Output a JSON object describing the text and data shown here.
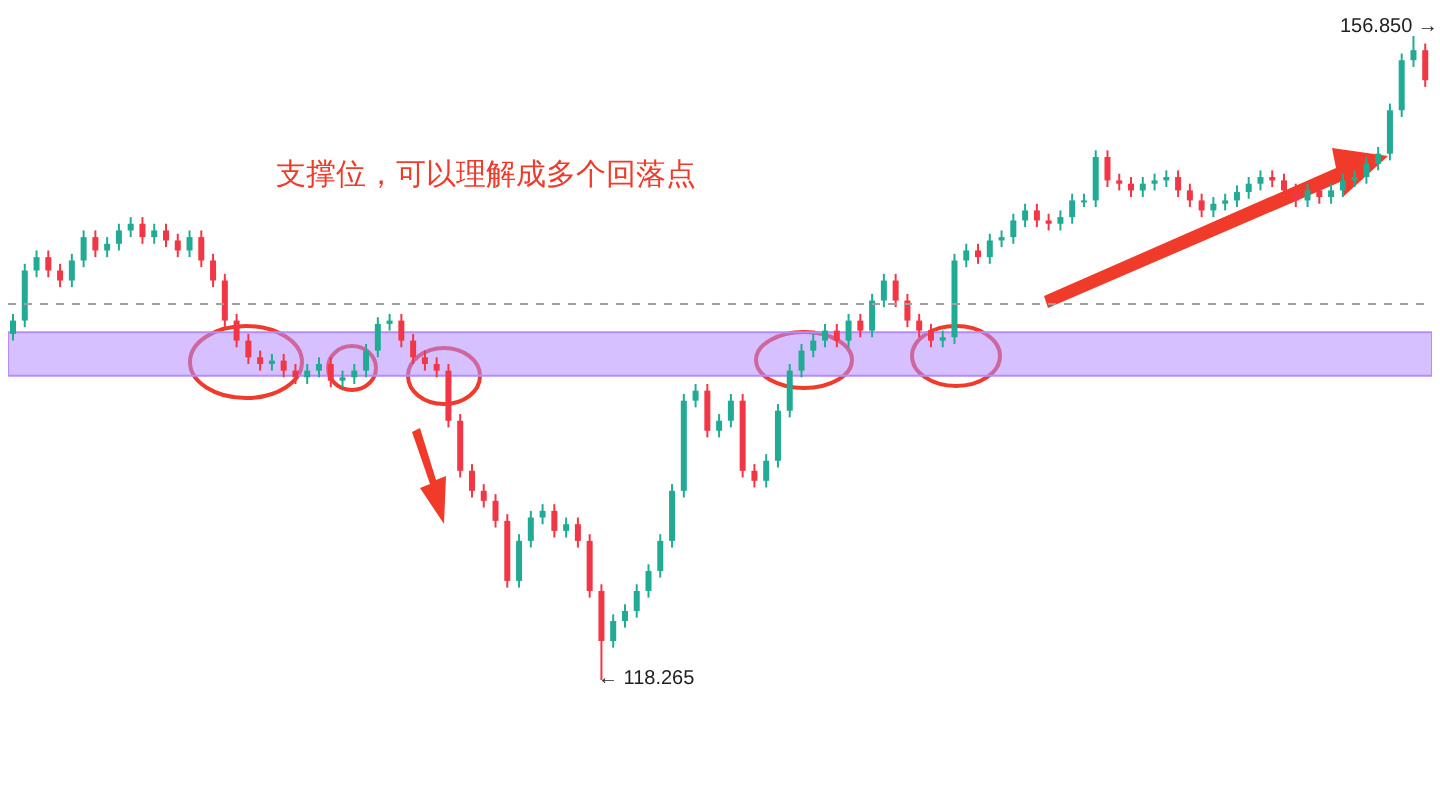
{
  "chart_data": {
    "type": "candlestick",
    "annotations": [
      "支撑位，可以理解成多个回落点",
      "156.850 →",
      "← 118.265"
    ],
    "ref_lines": [
      {
        "axis": "y",
        "value": 140.8,
        "color": "#a0a0a0",
        "line_style": "dashed"
      }
    ],
    "bands": [
      {
        "axis": "y",
        "from": 136.5,
        "to": 139.1,
        "color": "#b48cff"
      }
    ],
    "categories": [
      null,
      null,
      null,
      null,
      null,
      null,
      null,
      null,
      null,
      null,
      null,
      null,
      null,
      null,
      null,
      null,
      null,
      null,
      null,
      null,
      null,
      null,
      null,
      null,
      null,
      null,
      null,
      null,
      null,
      null,
      null,
      null,
      null,
      null,
      null,
      null,
      null,
      null,
      null,
      null,
      null,
      null,
      null,
      null,
      null,
      null,
      null,
      null,
      null,
      null,
      null,
      null,
      null,
      null,
      null,
      null,
      null,
      null,
      null,
      null,
      null,
      null,
      null,
      null,
      null,
      null,
      null,
      null,
      null,
      null,
      null,
      null,
      null,
      null,
      null,
      null,
      null,
      null,
      null,
      null,
      null,
      null,
      null,
      null,
      null,
      null,
      null,
      null,
      null,
      null,
      null,
      null,
      null,
      null,
      null,
      null,
      null,
      null,
      null,
      null,
      null,
      null,
      null,
      null,
      null,
      null,
      null,
      null,
      null,
      null,
      null,
      null,
      null,
      null,
      null,
      null,
      null,
      null,
      null,
      null,
      null
    ],
    "ohlc": [
      [
        139.0,
        140.2,
        138.6,
        139.8
      ],
      [
        139.8,
        143.2,
        139.4,
        142.8
      ],
      [
        142.8,
        144.0,
        142.4,
        143.6
      ],
      [
        143.6,
        144.0,
        142.4,
        142.8
      ],
      [
        142.8,
        143.2,
        141.8,
        142.2
      ],
      [
        142.2,
        143.8,
        141.8,
        143.4
      ],
      [
        143.4,
        145.2,
        143.0,
        144.8
      ],
      [
        144.8,
        145.2,
        143.6,
        144.0
      ],
      [
        144.0,
        144.8,
        143.6,
        144.4
      ],
      [
        144.4,
        145.6,
        144.0,
        145.2
      ],
      [
        145.2,
        146.0,
        144.8,
        145.6
      ],
      [
        145.6,
        146.0,
        144.4,
        144.8
      ],
      [
        144.8,
        145.6,
        144.4,
        145.2
      ],
      [
        145.2,
        145.6,
        144.2,
        144.6
      ],
      [
        144.6,
        145.0,
        143.6,
        144.0
      ],
      [
        144.0,
        145.2,
        143.6,
        144.8
      ],
      [
        144.8,
        145.2,
        143.0,
        143.4
      ],
      [
        143.4,
        143.8,
        141.8,
        142.2
      ],
      [
        142.2,
        142.6,
        139.4,
        139.8
      ],
      [
        139.8,
        140.2,
        138.2,
        138.6
      ],
      [
        138.6,
        139.0,
        137.2,
        137.6
      ],
      [
        137.6,
        138.0,
        136.8,
        137.2
      ],
      [
        137.2,
        137.8,
        136.8,
        137.4
      ],
      [
        137.4,
        137.8,
        136.4,
        136.8
      ],
      [
        136.8,
        137.2,
        136.0,
        136.4
      ],
      [
        136.4,
        137.2,
        136.0,
        136.8
      ],
      [
        136.8,
        137.6,
        136.4,
        137.2
      ],
      [
        137.2,
        137.6,
        135.8,
        136.2
      ],
      [
        136.2,
        136.8,
        135.8,
        136.4
      ],
      [
        136.4,
        137.2,
        136.0,
        136.8
      ],
      [
        136.8,
        138.4,
        136.4,
        138.0
      ],
      [
        138.0,
        140.0,
        137.6,
        139.6
      ],
      [
        139.6,
        140.2,
        139.2,
        139.8
      ],
      [
        139.8,
        140.2,
        138.2,
        138.6
      ],
      [
        138.6,
        139.0,
        137.2,
        137.6
      ],
      [
        137.6,
        138.0,
        136.8,
        137.2
      ],
      [
        137.2,
        137.6,
        136.4,
        136.8
      ],
      [
        136.8,
        137.2,
        133.4,
        133.8
      ],
      [
        133.8,
        134.2,
        130.4,
        130.8
      ],
      [
        130.8,
        131.2,
        129.2,
        129.6
      ],
      [
        129.6,
        130.0,
        128.6,
        129.0
      ],
      [
        129.0,
        129.4,
        127.4,
        127.8
      ],
      [
        127.8,
        128.2,
        123.8,
        124.2
      ],
      [
        124.2,
        127.0,
        123.8,
        126.6
      ],
      [
        126.6,
        128.4,
        126.2,
        128.0
      ],
      [
        128.0,
        128.8,
        127.6,
        128.4
      ],
      [
        128.4,
        128.8,
        126.8,
        127.2
      ],
      [
        127.2,
        128.0,
        126.8,
        127.6
      ],
      [
        127.6,
        128.0,
        126.2,
        126.6
      ],
      [
        126.6,
        127.0,
        123.2,
        123.6
      ],
      [
        123.6,
        124.0,
        118.265,
        120.6
      ],
      [
        120.6,
        122.2,
        120.2,
        121.8
      ],
      [
        121.8,
        122.8,
        121.4,
        122.4
      ],
      [
        122.4,
        124.0,
        122.0,
        123.6
      ],
      [
        123.6,
        125.2,
        123.2,
        124.8
      ],
      [
        124.8,
        127.0,
        124.4,
        126.6
      ],
      [
        126.6,
        130.0,
        126.2,
        129.6
      ],
      [
        129.6,
        135.4,
        129.2,
        135.0
      ],
      [
        135.0,
        136.0,
        134.6,
        135.6
      ],
      [
        135.6,
        136.0,
        132.8,
        133.2
      ],
      [
        133.2,
        134.2,
        132.8,
        133.8
      ],
      [
        133.8,
        135.4,
        133.4,
        135.0
      ],
      [
        135.0,
        135.4,
        130.4,
        130.8
      ],
      [
        130.8,
        131.2,
        129.8,
        130.2
      ],
      [
        130.2,
        131.8,
        129.8,
        131.4
      ],
      [
        131.4,
        134.8,
        131.0,
        134.4
      ],
      [
        134.4,
        137.2,
        134.0,
        136.8
      ],
      [
        136.8,
        138.4,
        136.4,
        138.0
      ],
      [
        138.0,
        139.0,
        137.6,
        138.6
      ],
      [
        138.6,
        139.6,
        138.2,
        139.2
      ],
      [
        139.2,
        139.6,
        138.2,
        138.6
      ],
      [
        138.6,
        140.2,
        138.2,
        139.8
      ],
      [
        139.8,
        140.2,
        138.8,
        139.2
      ],
      [
        139.2,
        141.4,
        138.8,
        141.0
      ],
      [
        141.0,
        142.6,
        140.6,
        142.2
      ],
      [
        142.2,
        142.6,
        140.6,
        141.0
      ],
      [
        141.0,
        141.4,
        139.4,
        139.8
      ],
      [
        139.8,
        140.2,
        138.8,
        139.2
      ],
      [
        139.2,
        139.6,
        138.2,
        138.6
      ],
      [
        138.6,
        139.2,
        138.2,
        138.8
      ],
      [
        138.8,
        143.8,
        138.4,
        143.4
      ],
      [
        143.4,
        144.4,
        143.0,
        144.0
      ],
      [
        144.0,
        144.4,
        143.2,
        143.6
      ],
      [
        143.6,
        145.0,
        143.2,
        144.6
      ],
      [
        144.6,
        145.2,
        144.2,
        144.8
      ],
      [
        144.8,
        146.2,
        144.4,
        145.8
      ],
      [
        145.8,
        146.8,
        145.4,
        146.4
      ],
      [
        146.4,
        146.8,
        145.4,
        145.8
      ],
      [
        145.8,
        146.2,
        145.2,
        145.6
      ],
      [
        145.6,
        146.4,
        145.2,
        146.0
      ],
      [
        146.0,
        147.4,
        145.6,
        147.0
      ],
      [
        147.0,
        147.4,
        146.6,
        147.0
      ],
      [
        147.0,
        150.0,
        146.6,
        149.6
      ],
      [
        149.6,
        150.0,
        147.8,
        148.2
      ],
      [
        148.2,
        148.6,
        147.6,
        148.0
      ],
      [
        148.0,
        148.4,
        147.2,
        147.6
      ],
      [
        147.6,
        148.4,
        147.2,
        148.0
      ],
      [
        148.0,
        148.6,
        147.6,
        148.2
      ],
      [
        148.2,
        148.8,
        147.8,
        148.4
      ],
      [
        148.4,
        148.8,
        147.2,
        147.6
      ],
      [
        147.6,
        148.0,
        146.6,
        147.0
      ],
      [
        147.0,
        147.4,
        146.0,
        146.4
      ],
      [
        146.4,
        147.2,
        146.0,
        146.8
      ],
      [
        146.8,
        147.4,
        146.4,
        147.0
      ],
      [
        147.0,
        147.9,
        146.6,
        147.5
      ],
      [
        147.5,
        148.4,
        147.1,
        148.0
      ],
      [
        148.0,
        148.8,
        147.6,
        148.4
      ],
      [
        148.4,
        148.8,
        147.8,
        148.2
      ],
      [
        148.2,
        148.6,
        147.2,
        147.6
      ],
      [
        147.6,
        148.0,
        146.6,
        147.0
      ],
      [
        147.0,
        148.0,
        146.6,
        147.6
      ],
      [
        147.6,
        148.0,
        146.8,
        147.2
      ],
      [
        147.2,
        148.0,
        146.8,
        147.6
      ],
      [
        147.6,
        148.6,
        147.2,
        148.2
      ],
      [
        148.2,
        148.8,
        147.8,
        148.4
      ],
      [
        148.4,
        149.6,
        148.0,
        149.2
      ],
      [
        149.2,
        150.2,
        148.8,
        149.8
      ],
      [
        149.8,
        152.8,
        149.4,
        152.4
      ],
      [
        152.4,
        155.8,
        152.0,
        155.4
      ],
      [
        155.4,
        156.85,
        155.0,
        156.0
      ],
      [
        156.0,
        156.4,
        153.8,
        154.2
      ]
    ],
    "colors": [
      "#22ab94",
      "#22ab94",
      "#22ab94",
      "#f23645",
      "#f23645",
      "#22ab94",
      "#22ab94",
      "#f23645",
      "#22ab94",
      "#22ab94",
      "#22ab94",
      "#f23645",
      "#22ab94",
      "#f23645",
      "#f23645",
      "#22ab94",
      "#f23645",
      "#f23645",
      "#f23645",
      "#f23645",
      "#f23645",
      "#f23645",
      "#22ab94",
      "#f23645",
      "#f23645",
      "#22ab94",
      "#22ab94",
      "#f23645",
      "#22ab94",
      "#22ab94",
      "#22ab94",
      "#22ab94",
      "#22ab94",
      "#f23645",
      "#f23645",
      "#f23645",
      "#f23645",
      "#f23645",
      "#f23645",
      "#f23645",
      "#f23645",
      "#f23645",
      "#f23645",
      "#22ab94",
      "#22ab94",
      "#22ab94",
      "#f23645",
      "#22ab94",
      "#f23645",
      "#f23645",
      "#f23645",
      "#22ab94",
      "#22ab94",
      "#22ab94",
      "#22ab94",
      "#22ab94",
      "#22ab94",
      "#22ab94",
      "#22ab94",
      "#f23645",
      "#22ab94",
      "#22ab94",
      "#f23645",
      "#f23645",
      "#22ab94",
      "#22ab94",
      "#22ab94",
      "#22ab94",
      "#22ab94",
      "#22ab94",
      "#f23645",
      "#22ab94",
      "#f23645",
      "#22ab94",
      "#22ab94",
      "#f23645",
      "#f23645",
      "#f23645",
      "#f23645",
      "#22ab94",
      "#22ab94",
      "#22ab94",
      "#f23645",
      "#22ab94",
      "#22ab94",
      "#22ab94",
      "#22ab94",
      "#f23645",
      "#f23645",
      "#22ab94",
      "#22ab94",
      "#22ab94",
      "#22ab94",
      "#f23645",
      "#f23645",
      "#f23645",
      "#22ab94",
      "#22ab94",
      "#22ab94",
      "#f23645",
      "#f23645",
      "#f23645",
      "#22ab94",
      "#22ab94",
      "#22ab94",
      "#22ab94",
      "#22ab94",
      "#f23645",
      "#f23645",
      "#f23645",
      "#22ab94",
      "#f23645",
      "#22ab94",
      "#22ab94",
      "#22ab94",
      "#22ab94",
      "#22ab94",
      "#22ab94",
      "#22ab94",
      "#22ab94",
      "#f23645"
    ]
  }
}
